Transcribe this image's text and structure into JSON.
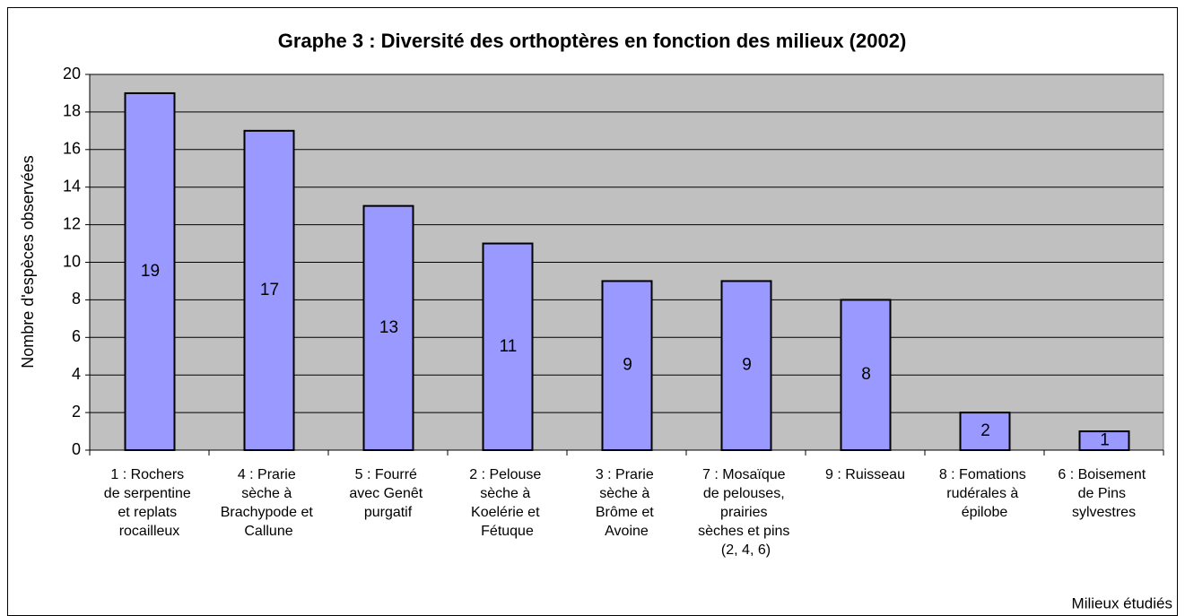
{
  "chart_data": {
    "type": "bar",
    "title": "Graphe 3 : Diversité des orthoptères en fonction des milieux (2002)",
    "y_label": "Nombre d'espèces observées",
    "x_label": "Milieux étudiés",
    "categories": [
      "1 : Rochers de serpentine et replats rocailleux",
      "4 : Prarie sèche à Brachypode et Callune",
      "5 : Fourré avec Genêt purgatif",
      "2 : Pelouse sèche à Koelérie et Fétuque",
      "3 : Prarie sèche à Brôme et Avoine",
      "7 : Mosaïque de pelouses, prairies sèches et pins (2, 4, 6)",
      "9 : Ruisseau",
      "8 : Fomations rudérales à épilobe",
      "6 : Boisement de Pins sylvestres"
    ],
    "values": [
      19,
      17,
      13,
      11,
      9,
      9,
      8,
      2,
      1
    ],
    "color": "#9999ff",
    "ylim": [
      0,
      20
    ],
    "yticks": [
      0,
      2,
      4,
      6,
      8,
      10,
      12,
      14,
      16,
      18,
      20
    ],
    "grid": true
  }
}
